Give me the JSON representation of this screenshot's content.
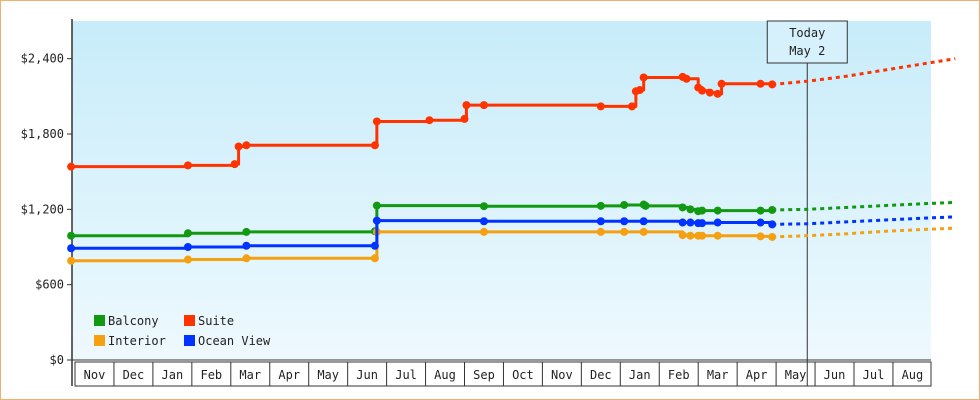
{
  "chart_data": {
    "type": "line",
    "title": "",
    "xlabel": "",
    "ylabel": "",
    "ylim": [
      0,
      2700
    ],
    "yticks": [
      0,
      600,
      1200,
      1800,
      2400
    ],
    "ytick_labels": [
      "$0",
      "$600",
      "$1,200",
      "$1,800",
      "$2,400"
    ],
    "month_labels": [
      "Nov",
      "Dec",
      "Jan",
      "Feb",
      "Mar",
      "Apr",
      "May",
      "Jun",
      "Jul",
      "Aug",
      "Sep",
      "Oct",
      "Nov",
      "Dec",
      "Jan",
      "Feb",
      "Mar",
      "Apr",
      "May",
      "Jun",
      "Jul",
      "Aug"
    ],
    "today_marker": {
      "label_line1": "Today",
      "label_line2": "May 2",
      "x": 18.8
    },
    "grid": false,
    "legend_position": "bottom-left",
    "x_unit": "months, where 0 = start of Nov (first month shown)",
    "series": [
      {
        "name": "Balcony",
        "color": "#119911",
        "points": [
          [
            -0.1,
            990
          ],
          [
            2.9,
            1010
          ],
          [
            4.4,
            1020
          ],
          [
            7.7,
            1025
          ],
          [
            7.75,
            1230
          ],
          [
            10.5,
            1225
          ],
          [
            13.5,
            1228
          ],
          [
            14.1,
            1235
          ],
          [
            14.6,
            1238
          ],
          [
            14.65,
            1228
          ],
          [
            15.6,
            1215
          ],
          [
            15.8,
            1200
          ],
          [
            16.0,
            1185
          ],
          [
            16.1,
            1190
          ],
          [
            16.5,
            1190
          ],
          [
            17.6,
            1190
          ],
          [
            17.9,
            1195
          ]
        ],
        "forecast": [
          [
            17.9,
            1195
          ],
          [
            18.8,
            1200
          ],
          [
            19.8,
            1215
          ],
          [
            20.8,
            1230
          ],
          [
            21.8,
            1245
          ],
          [
            22.6,
            1255
          ]
        ]
      },
      {
        "name": "Suite",
        "color": "#ff3300",
        "points": [
          [
            -0.1,
            1540
          ],
          [
            2.9,
            1550
          ],
          [
            4.1,
            1560
          ],
          [
            4.2,
            1700
          ],
          [
            4.4,
            1710
          ],
          [
            7.7,
            1710
          ],
          [
            7.75,
            1900
          ],
          [
            9.1,
            1910
          ],
          [
            10.0,
            1920
          ],
          [
            10.05,
            2030
          ],
          [
            10.5,
            2030
          ],
          [
            13.5,
            2020
          ],
          [
            14.3,
            2020
          ],
          [
            14.4,
            2140
          ],
          [
            14.5,
            2150
          ],
          [
            14.6,
            2250
          ],
          [
            15.6,
            2255
          ],
          [
            15.7,
            2240
          ],
          [
            16.0,
            2170
          ],
          [
            16.1,
            2145
          ],
          [
            16.3,
            2130
          ],
          [
            16.5,
            2120
          ],
          [
            16.6,
            2200
          ],
          [
            17.6,
            2200
          ],
          [
            17.9,
            2195
          ]
        ],
        "forecast": [
          [
            17.9,
            2195
          ],
          [
            18.8,
            2220
          ],
          [
            19.8,
            2260
          ],
          [
            20.8,
            2310
          ],
          [
            21.8,
            2360
          ],
          [
            22.6,
            2400
          ]
        ]
      },
      {
        "name": "Interior",
        "color": "#f5a010",
        "points": [
          [
            -0.1,
            790
          ],
          [
            2.9,
            800
          ],
          [
            4.4,
            810
          ],
          [
            7.7,
            810
          ],
          [
            7.75,
            1020
          ],
          [
            10.5,
            1020
          ],
          [
            13.5,
            1020
          ],
          [
            14.1,
            1020
          ],
          [
            14.6,
            1020
          ],
          [
            15.6,
            995
          ],
          [
            15.8,
            990
          ],
          [
            16.0,
            990
          ],
          [
            16.1,
            990
          ],
          [
            16.5,
            990
          ],
          [
            17.6,
            985
          ],
          [
            17.9,
            980
          ]
        ],
        "forecast": [
          [
            17.9,
            980
          ],
          [
            18.8,
            990
          ],
          [
            19.8,
            1005
          ],
          [
            20.8,
            1025
          ],
          [
            21.8,
            1040
          ],
          [
            22.6,
            1050
          ]
        ]
      },
      {
        "name": "Ocean View",
        "color": "#0033ff",
        "points": [
          [
            -0.1,
            890
          ],
          [
            2.9,
            900
          ],
          [
            4.4,
            910
          ],
          [
            7.7,
            910
          ],
          [
            7.75,
            1110
          ],
          [
            10.5,
            1105
          ],
          [
            13.5,
            1105
          ],
          [
            14.1,
            1105
          ],
          [
            14.6,
            1105
          ],
          [
            15.6,
            1095
          ],
          [
            15.8,
            1095
          ],
          [
            16.0,
            1090
          ],
          [
            16.1,
            1090
          ],
          [
            16.5,
            1095
          ],
          [
            17.6,
            1095
          ],
          [
            17.9,
            1080
          ]
        ],
        "forecast": [
          [
            17.9,
            1080
          ],
          [
            18.8,
            1085
          ],
          [
            19.8,
            1100
          ],
          [
            20.8,
            1115
          ],
          [
            21.8,
            1130
          ],
          [
            22.6,
            1140
          ]
        ]
      }
    ],
    "legend": [
      {
        "name": "Balcony",
        "color": "#119911"
      },
      {
        "name": "Suite",
        "color": "#ff3300"
      },
      {
        "name": "Interior",
        "color": "#f5a010"
      },
      {
        "name": "Ocean View",
        "color": "#0033ff"
      }
    ]
  }
}
